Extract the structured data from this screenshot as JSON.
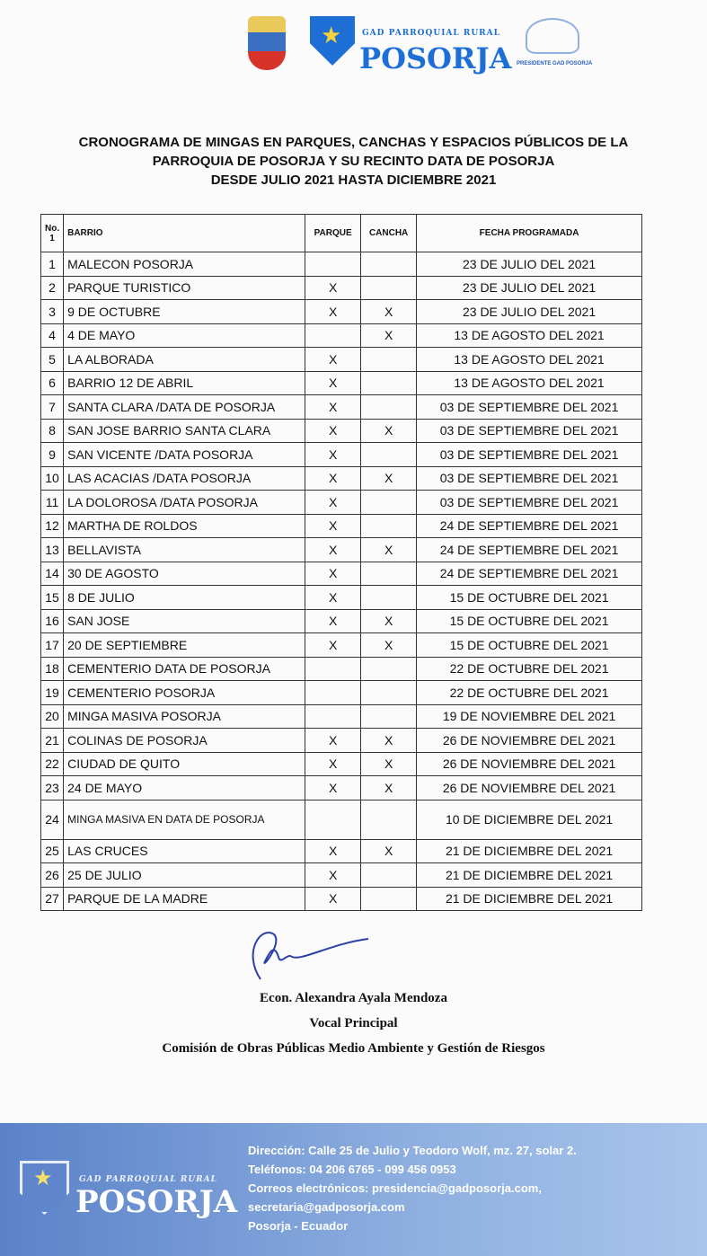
{
  "header": {
    "brand_small": "GAD PARROQUIAL RURAL",
    "brand_big": "POSORJA",
    "president_caption": "PRESIDENTE GAD POSORJA"
  },
  "title": [
    "CRONOGRAMA DE MINGAS EN PARQUES, CANCHAS Y ESPACIOS PÚBLICOS DE LA",
    "PARROQUIA DE POSORJA Y SU RECINTO DATA DE POSORJA",
    "DESDE JULIO 2021 HASTA DICIEMBRE 2021"
  ],
  "table": {
    "headers": {
      "no": "No. 1",
      "barrio": "BARRIO",
      "parque": "PARQUE",
      "cancha": "CANCHA",
      "fecha": "FECHA PROGRAMADA"
    },
    "rows": [
      {
        "no": "1",
        "barrio": "MALECON POSORJA",
        "parque": "",
        "cancha": "",
        "fecha": "23 DE JULIO DEL 2021"
      },
      {
        "no": "2",
        "barrio": "PARQUE TURISTICO",
        "parque": "X",
        "cancha": "",
        "fecha": "23 DE JULIO DEL 2021"
      },
      {
        "no": "3",
        "barrio": "9 DE OCTUBRE",
        "parque": "X",
        "cancha": "X",
        "fecha": "23 DE JULIO DEL 2021"
      },
      {
        "no": "4",
        "barrio": "4 DE MAYO",
        "parque": "",
        "cancha": "X",
        "fecha": "13 DE AGOSTO DEL 2021"
      },
      {
        "no": "5",
        "barrio": "LA ALBORADA",
        "parque": "X",
        "cancha": "",
        "fecha": "13 DE AGOSTO DEL 2021"
      },
      {
        "no": "6",
        "barrio": "BARRIO 12 DE ABRIL",
        "parque": "X",
        "cancha": "",
        "fecha": "13 DE AGOSTO DEL 2021"
      },
      {
        "no": "7",
        "barrio": "SANTA CLARA /DATA DE POSORJA",
        "parque": "X",
        "cancha": "",
        "fecha": "03 DE SEPTIEMBRE DEL 2021"
      },
      {
        "no": "8",
        "barrio": "SAN JOSE BARRIO SANTA CLARA",
        "parque": "X",
        "cancha": "X",
        "fecha": "03 DE SEPTIEMBRE DEL 2021"
      },
      {
        "no": "9",
        "barrio": "SAN VICENTE /DATA POSORJA",
        "parque": "X",
        "cancha": "",
        "fecha": "03 DE SEPTIEMBRE DEL 2021"
      },
      {
        "no": "10",
        "barrio": "LAS ACACIAS /DATA POSORJA",
        "parque": "X",
        "cancha": "X",
        "fecha": "03 DE SEPTIEMBRE DEL 2021"
      },
      {
        "no": "11",
        "barrio": "LA DOLOROSA /DATA POSORJA",
        "parque": "X",
        "cancha": "",
        "fecha": "03 DE SEPTIEMBRE DEL 2021"
      },
      {
        "no": "12",
        "barrio": "MARTHA DE ROLDOS",
        "parque": "X",
        "cancha": "",
        "fecha": "24 DE SEPTIEMBRE DEL 2021"
      },
      {
        "no": "13",
        "barrio": "BELLAVISTA",
        "parque": "X",
        "cancha": "X",
        "fecha": "24 DE SEPTIEMBRE DEL 2021"
      },
      {
        "no": "14",
        "barrio": "30 DE AGOSTO",
        "parque": "X",
        "cancha": "",
        "fecha": "24 DE SEPTIEMBRE DEL 2021"
      },
      {
        "no": "15",
        "barrio": "8 DE JULIO",
        "parque": "X",
        "cancha": "",
        "fecha": "15 DE OCTUBRE DEL 2021"
      },
      {
        "no": "16",
        "barrio": "SAN JOSE",
        "parque": "X",
        "cancha": "X",
        "fecha": "15 DE OCTUBRE DEL 2021"
      },
      {
        "no": "17",
        "barrio": "20 DE SEPTIEMBRE",
        "parque": "X",
        "cancha": "X",
        "fecha": "15 DE OCTUBRE DEL 2021"
      },
      {
        "no": "18",
        "barrio": "CEMENTERIO DATA DE POSORJA",
        "parque": "",
        "cancha": "",
        "fecha": "22 DE OCTUBRE DEL 2021"
      },
      {
        "no": "19",
        "barrio": "CEMENTERIO POSORJA",
        "parque": "",
        "cancha": "",
        "fecha": "22 DE OCTUBRE DEL 2021"
      },
      {
        "no": "20",
        "barrio": "MINGA MASIVA POSORJA",
        "parque": "",
        "cancha": "",
        "fecha": "19 DE NOVIEMBRE DEL 2021"
      },
      {
        "no": "21",
        "barrio": "COLINAS DE POSORJA",
        "parque": "X",
        "cancha": "X",
        "fecha": "26 DE NOVIEMBRE DEL 2021"
      },
      {
        "no": "22",
        "barrio": "CIUDAD DE QUITO",
        "parque": "X",
        "cancha": "X",
        "fecha": "26 DE NOVIEMBRE DEL 2021"
      },
      {
        "no": "23",
        "barrio": "24 DE MAYO",
        "parque": "X",
        "cancha": "X",
        "fecha": "26 DE NOVIEMBRE DEL 2021"
      },
      {
        "no": "24",
        "barrio": "MINGA MASIVA EN DATA DE POSORJA",
        "parque": "",
        "cancha": "",
        "fecha": "10 DE DICIEMBRE DEL 2021"
      },
      {
        "no": "25",
        "barrio": "LAS CRUCES",
        "parque": "X",
        "cancha": "X",
        "fecha": "21 DE DICIEMBRE DEL 2021"
      },
      {
        "no": "26",
        "barrio": "25 DE JULIO",
        "parque": "X",
        "cancha": "",
        "fecha": "21 DE DICIEMBRE DEL 2021"
      },
      {
        "no": "27",
        "barrio": "PARQUE DE LA MADRE",
        "parque": "X",
        "cancha": "",
        "fecha": "21 DE DICIEMBRE DEL 2021"
      }
    ]
  },
  "signature": {
    "name": "Econ. Alexandra Ayala Mendoza",
    "role": "Vocal Principal",
    "commission": "Comisión de Obras Públicas Medio Ambiente y Gestión de Riesgos"
  },
  "footer": {
    "brand_small": "GAD PARROQUIAL RURAL",
    "brand_big": "POSORJA",
    "lines": [
      "Dirección: Calle 25 de Julio y Teodoro Wolf, mz. 27, solar 2.",
      "Teléfonos: 04 206 6765 - 099 456 0953",
      "Correos electrónicos: presidencia@gadposorja.com,",
      "secretaria@gadposorja.com",
      "Posorja - Ecuador"
    ]
  }
}
